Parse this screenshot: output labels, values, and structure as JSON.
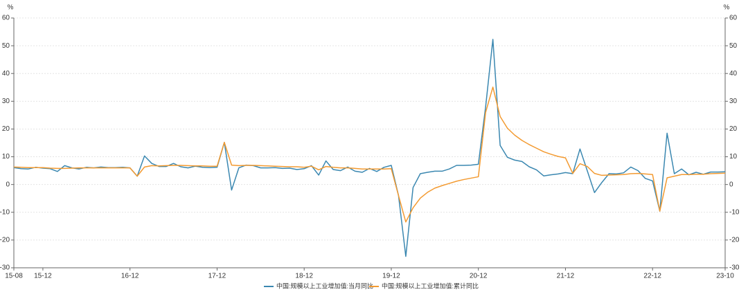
{
  "chart_data": {
    "type": "line",
    "y_label": "%",
    "y2_label": "%",
    "categories": [
      "15-08",
      null,
      null,
      null,
      "15-12",
      null,
      null,
      null,
      null,
      null,
      null,
      null,
      null,
      null,
      null,
      null,
      "16-12",
      null,
      null,
      null,
      null,
      null,
      null,
      null,
      null,
      null,
      null,
      null,
      "17-12",
      null,
      null,
      null,
      null,
      null,
      null,
      null,
      null,
      null,
      null,
      null,
      "18-12",
      null,
      null,
      null,
      null,
      null,
      null,
      null,
      null,
      null,
      null,
      null,
      "19-12",
      null,
      null,
      null,
      null,
      null,
      null,
      null,
      null,
      null,
      null,
      null,
      "20-12",
      null,
      null,
      null,
      null,
      null,
      null,
      null,
      null,
      null,
      null,
      null,
      "21-12",
      null,
      null,
      null,
      null,
      null,
      null,
      null,
      null,
      null,
      null,
      null,
      "22-12",
      null,
      null,
      null,
      null,
      null,
      null,
      null,
      null,
      null,
      "23-10"
    ],
    "series": [
      {
        "name": "中国:规模以上工业增加值:当月同比",
        "color": "#3a87b0",
        "values": [
          6.1,
          5.7,
          5.6,
          6.2,
          5.9,
          5.7,
          4.7,
          6.8,
          6.0,
          5.6,
          6.2,
          6.0,
          6.3,
          6.1,
          6.1,
          6.2,
          6.0,
          3.0,
          10.3,
          7.6,
          6.5,
          6.5,
          7.6,
          6.4,
          6.0,
          6.6,
          6.2,
          6.1,
          6.2,
          15.2,
          -2.0,
          6.0,
          7.0,
          6.8,
          6.0,
          6.0,
          6.1,
          5.8,
          5.9,
          5.4,
          5.7,
          6.8,
          3.4,
          8.5,
          5.4,
          5.0,
          6.3,
          4.8,
          4.4,
          5.8,
          4.7,
          6.2,
          6.9,
          -4.0,
          -25.9,
          -1.1,
          3.9,
          4.4,
          4.8,
          4.8,
          5.6,
          6.9,
          6.9,
          7.0,
          7.3,
          28.0,
          52.3,
          14.1,
          9.8,
          8.8,
          8.3,
          6.4,
          5.3,
          3.1,
          3.5,
          3.8,
          4.3,
          3.9,
          12.8,
          5.0,
          -2.9,
          0.7,
          3.9,
          3.8,
          4.2,
          6.3,
          5.0,
          2.2,
          1.3,
          -9.6,
          18.5,
          3.9,
          5.6,
          3.5,
          4.4,
          3.7,
          4.5,
          4.5,
          4.6
        ]
      },
      {
        "name": "中国:规模以上工业增加值:累计同比",
        "color": "#f39a30",
        "values": [
          6.3,
          6.2,
          6.1,
          6.1,
          6.1,
          5.9,
          5.8,
          5.8,
          5.9,
          6.0,
          6.0,
          6.0,
          6.0,
          6.0,
          6.0,
          6.0,
          6.0,
          3.0,
          6.3,
          6.8,
          6.7,
          6.8,
          6.9,
          6.9,
          6.8,
          6.7,
          6.7,
          6.6,
          6.6,
          15.2,
          7.0,
          6.8,
          6.9,
          6.9,
          6.8,
          6.7,
          6.6,
          6.5,
          6.4,
          6.4,
          6.2,
          6.6,
          5.3,
          6.5,
          6.2,
          6.0,
          6.0,
          5.8,
          5.6,
          5.6,
          5.6,
          5.6,
          5.7,
          -4.0,
          -13.5,
          -8.4,
          -4.9,
          -2.8,
          -1.3,
          -0.4,
          0.4,
          1.2,
          1.8,
          2.3,
          2.8,
          26.0,
          35.1,
          24.5,
          20.3,
          17.8,
          15.9,
          14.4,
          13.1,
          11.8,
          10.9,
          10.1,
          9.6,
          4.0,
          7.5,
          6.5,
          4.0,
          3.3,
          3.4,
          3.5,
          3.6,
          3.9,
          4.0,
          3.8,
          3.6,
          -9.6,
          2.4,
          3.0,
          3.6,
          3.6,
          3.7,
          3.7,
          3.9,
          4.0,
          4.1
        ]
      }
    ],
    "ylim": [
      -30,
      60
    ],
    "yticks": [
      -30,
      -20,
      -10,
      0,
      10,
      20,
      30,
      40,
      50,
      60
    ],
    "y2lim": [
      -30,
      60
    ],
    "y2ticks": [
      -30,
      -20,
      -10,
      0,
      10,
      20,
      30,
      40,
      50,
      60
    ],
    "grid": true
  }
}
